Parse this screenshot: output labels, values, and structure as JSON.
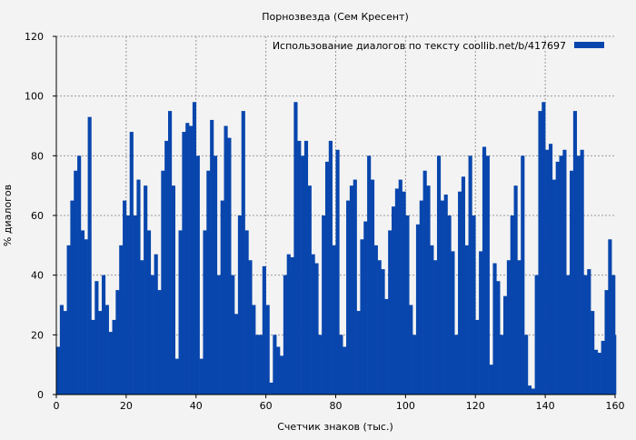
{
  "chart_data": {
    "type": "area",
    "title": "Порнозвезда (Сем Кресент)",
    "xlabel": "Счетчик знаков (тыс.)",
    "ylabel": "% диалогов",
    "xlim": [
      0,
      160
    ],
    "ylim": [
      0,
      120
    ],
    "xticks": [
      "0",
      "20",
      "40",
      "60",
      "80",
      "100",
      "120",
      "140",
      "160"
    ],
    "yticks": [
      "0",
      "20",
      "40",
      "60",
      "80",
      "100",
      "120"
    ],
    "grid": true,
    "legend_position": "top-right",
    "color": "#0846ad",
    "series": [
      {
        "name": "Использование диалогов по тексту  coollib.net/b/417697",
        "values": [
          16,
          30,
          28,
          50,
          65,
          75,
          80,
          55,
          52,
          93,
          25,
          38,
          28,
          40,
          30,
          21,
          25,
          35,
          50,
          65,
          60,
          88,
          60,
          72,
          45,
          70,
          55,
          40,
          47,
          35,
          75,
          85,
          95,
          70,
          12,
          55,
          88,
          91,
          90,
          98,
          80,
          12,
          55,
          75,
          92,
          80,
          40,
          65,
          90,
          86,
          40,
          27,
          60,
          95,
          55,
          45,
          30,
          20,
          20,
          43,
          30,
          4,
          20,
          16,
          13,
          40,
          47,
          46,
          98,
          85,
          80,
          85,
          70,
          47,
          44,
          20,
          60,
          78,
          85,
          50,
          82,
          20,
          16,
          65,
          70,
          72,
          28,
          52,
          58,
          80,
          72,
          50,
          45,
          42,
          32,
          55,
          63,
          69,
          72,
          68,
          60,
          30,
          20,
          57,
          65,
          75,
          70,
          50,
          45,
          80,
          65,
          67,
          60,
          48,
          20,
          68,
          73,
          50,
          80,
          60,
          25,
          48,
          83,
          80,
          10,
          44,
          38,
          20,
          33,
          45,
          60,
          70,
          45,
          80,
          20,
          3,
          2,
          40,
          95,
          98,
          82,
          84,
          72,
          78,
          80,
          82,
          40,
          75,
          95,
          80,
          82,
          40,
          42,
          28,
          15,
          14,
          18,
          35,
          52,
          40,
          20
        ]
      }
    ]
  }
}
